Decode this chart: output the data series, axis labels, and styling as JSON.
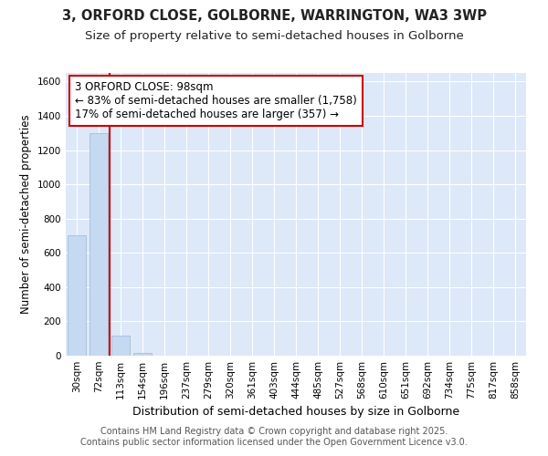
{
  "title": "3, ORFORD CLOSE, GOLBORNE, WARRINGTON, WA3 3WP",
  "subtitle": "Size of property relative to semi-detached houses in Golborne",
  "xlabel": "Distribution of semi-detached houses by size in Golborne",
  "ylabel": "Number of semi-detached properties",
  "categories": [
    "30sqm",
    "72sqm",
    "113sqm",
    "154sqm",
    "196sqm",
    "237sqm",
    "279sqm",
    "320sqm",
    "361sqm",
    "403sqm",
    "444sqm",
    "485sqm",
    "527sqm",
    "568sqm",
    "610sqm",
    "651sqm",
    "692sqm",
    "734sqm",
    "775sqm",
    "817sqm",
    "858sqm"
  ],
  "values": [
    700,
    1300,
    115,
    15,
    0,
    0,
    0,
    0,
    0,
    0,
    0,
    0,
    0,
    0,
    0,
    0,
    0,
    0,
    0,
    0,
    0
  ],
  "bar_color": "#c5d9f0",
  "bar_edge_color": "#9ab8d8",
  "annotation_line1": "3 ORFORD CLOSE: 98sqm",
  "annotation_line2": "← 83% of semi-detached houses are smaller (1,758)",
  "annotation_line3": "17% of semi-detached houses are larger (357) →",
  "annotation_box_color": "#ffffff",
  "annotation_box_edge_color": "#cc0000",
  "vline_color": "#cc0000",
  "vline_x_index": 1.5,
  "ylim": [
    0,
    1650
  ],
  "yticks": [
    0,
    200,
    400,
    600,
    800,
    1000,
    1200,
    1400,
    1600
  ],
  "background_color": "#dde8f8",
  "grid_color": "#ffffff",
  "footer_text": "Contains HM Land Registry data © Crown copyright and database right 2025.\nContains public sector information licensed under the Open Government Licence v3.0.",
  "title_fontsize": 10.5,
  "subtitle_fontsize": 9.5,
  "xlabel_fontsize": 9,
  "ylabel_fontsize": 8.5,
  "tick_fontsize": 7.5,
  "annotation_fontsize": 8.5,
  "footer_fontsize": 7
}
